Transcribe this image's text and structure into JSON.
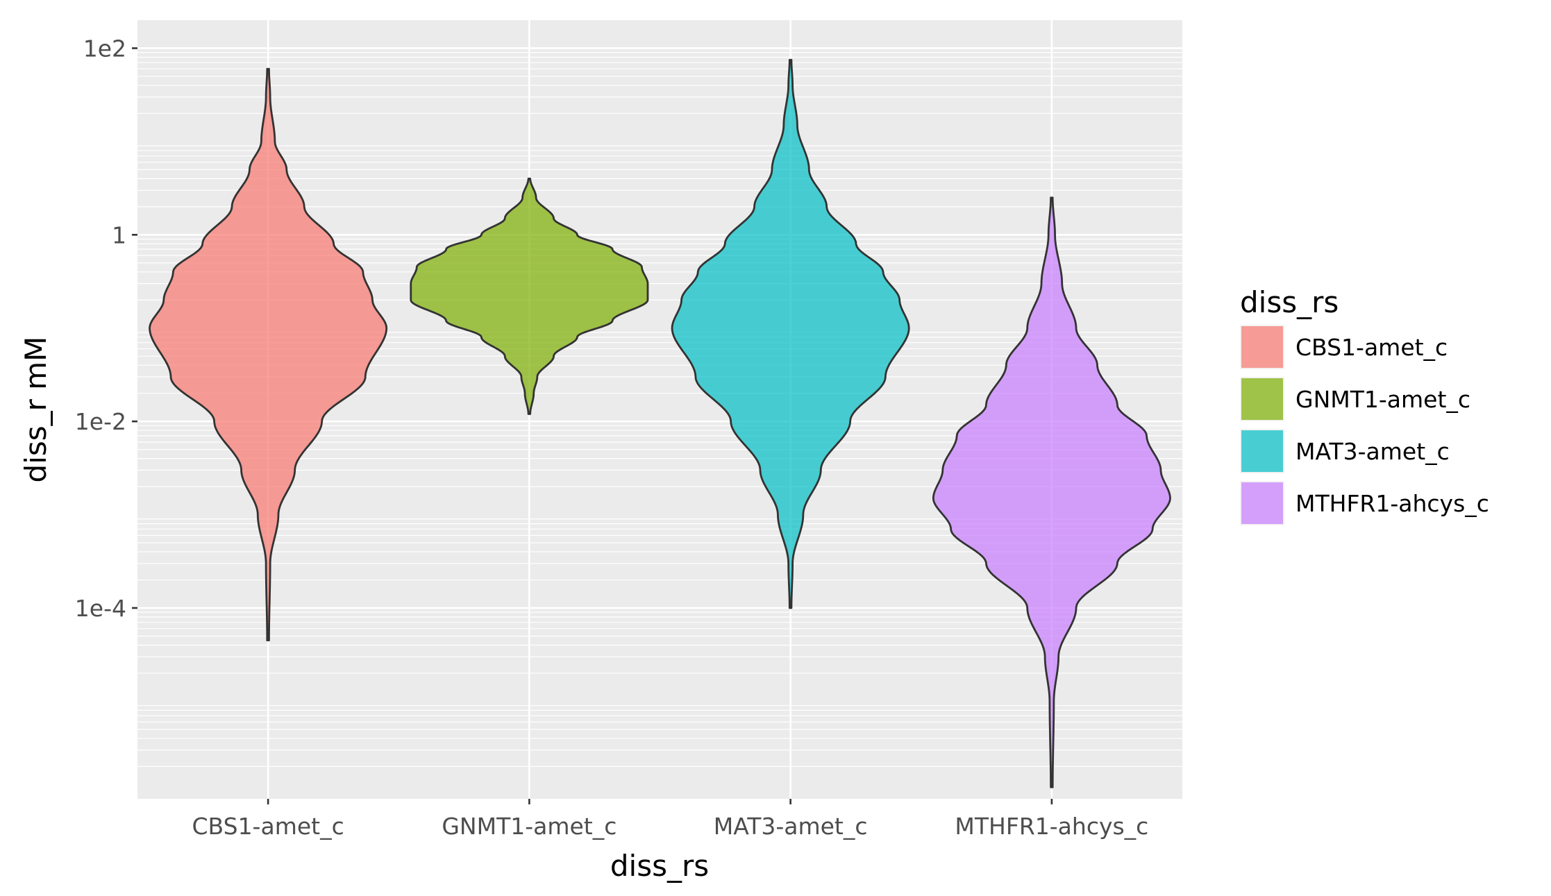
{
  "chart_data": {
    "type": "violin",
    "xlabel": "diss_rs",
    "ylabel": "diss_r mM",
    "y_scale": "log10",
    "ylim": [
      9e-07,
      200
    ],
    "y_ticks": [
      {
        "value": 0.0001,
        "label": "1e-4"
      },
      {
        "value": 0.01,
        "label": "1e-2"
      },
      {
        "value": 1,
        "label": "1"
      },
      {
        "value": 100,
        "label": "1e2"
      }
    ],
    "grid": true,
    "legend": {
      "title": "diss_rs",
      "position": "right",
      "entries": [
        "CBS1-amet_c",
        "GNMT1-amet_c",
        "MAT3-amet_c",
        "MTHFR1-ahcys_c"
      ]
    },
    "categories": [
      "CBS1-amet_c",
      "GNMT1-amet_c",
      "MAT3-amet_c",
      "MTHFR1-ahcys_c"
    ],
    "series": [
      {
        "name": "CBS1-amet_c",
        "color": "#F8766D",
        "min": 4.5e-05,
        "max": 60,
        "density_profile": [
          [
            4.5e-05,
            0.0
          ],
          [
            0.0003,
            0.01
          ],
          [
            0.001,
            0.08
          ],
          [
            0.003,
            0.22
          ],
          [
            0.01,
            0.45
          ],
          [
            0.03,
            0.82
          ],
          [
            0.1,
            1.0
          ],
          [
            0.2,
            0.88
          ],
          [
            0.4,
            0.8
          ],
          [
            0.8,
            0.55
          ],
          [
            2,
            0.3
          ],
          [
            5,
            0.15
          ],
          [
            10,
            0.05
          ],
          [
            30,
            0.01
          ],
          [
            60,
            0.0
          ]
        ]
      },
      {
        "name": "GNMT1-amet_c",
        "color": "#7CAE00",
        "min": 0.012,
        "max": 4,
        "density_profile": [
          [
            0.012,
            0.0
          ],
          [
            0.02,
            0.03
          ],
          [
            0.03,
            0.06
          ],
          [
            0.05,
            0.2
          ],
          [
            0.08,
            0.4
          ],
          [
            0.12,
            0.7
          ],
          [
            0.2,
            1.0
          ],
          [
            0.3,
            1.0
          ],
          [
            0.45,
            0.95
          ],
          [
            0.7,
            0.7
          ],
          [
            1,
            0.4
          ],
          [
            1.5,
            0.2
          ],
          [
            2.5,
            0.05
          ],
          [
            4,
            0.0
          ]
        ]
      },
      {
        "name": "MAT3-amet_c",
        "color": "#00BFC4",
        "min": 0.0001,
        "max": 75,
        "density_profile": [
          [
            0.0001,
            0.0
          ],
          [
            0.0003,
            0.01
          ],
          [
            0.001,
            0.1
          ],
          [
            0.003,
            0.25
          ],
          [
            0.01,
            0.5
          ],
          [
            0.03,
            0.8
          ],
          [
            0.1,
            1.0
          ],
          [
            0.2,
            0.92
          ],
          [
            0.4,
            0.78
          ],
          [
            0.8,
            0.55
          ],
          [
            2,
            0.3
          ],
          [
            5,
            0.15
          ],
          [
            15,
            0.05
          ],
          [
            40,
            0.01
          ],
          [
            75,
            0.0
          ]
        ]
      },
      {
        "name": "MTHFR1-ahcys_c",
        "color": "#C77CFF",
        "min": 1.2e-06,
        "max": 2.5,
        "density_profile": [
          [
            1.2e-06,
            0.0
          ],
          [
            1e-05,
            0.01
          ],
          [
            3e-05,
            0.05
          ],
          [
            0.0001,
            0.2
          ],
          [
            0.0003,
            0.55
          ],
          [
            0.0007,
            0.85
          ],
          [
            0.0015,
            1.0
          ],
          [
            0.003,
            0.92
          ],
          [
            0.007,
            0.8
          ],
          [
            0.015,
            0.55
          ],
          [
            0.04,
            0.38
          ],
          [
            0.1,
            0.2
          ],
          [
            0.3,
            0.08
          ],
          [
            1,
            0.02
          ],
          [
            2.5,
            0.0
          ]
        ]
      }
    ]
  }
}
